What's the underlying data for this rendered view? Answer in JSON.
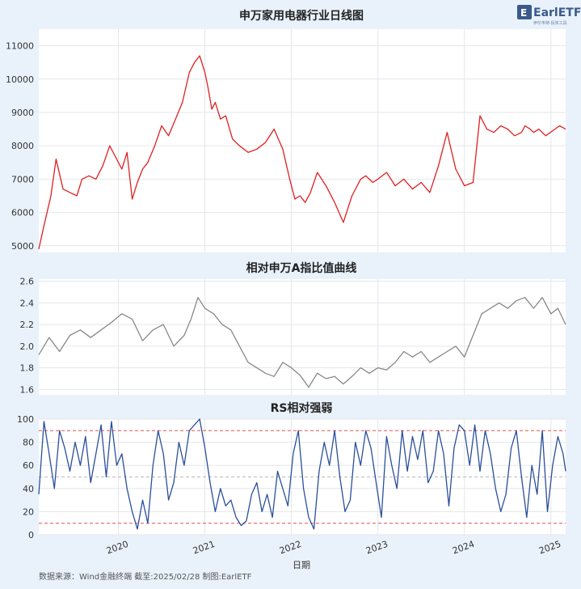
{
  "logo": {
    "text": "EarlETF",
    "subtext": "伊尔韦特·投资工具"
  },
  "footer": {
    "source": "数据来源：Wind金融终端 截至:2025/02/28 制图:EarlETF"
  },
  "colors": {
    "price": "#e02020",
    "ratio": "#888888",
    "rs": "#2a4f9a",
    "threshold": "#e05050",
    "mid": "#bbbbbb",
    "background": "#e9f2fb"
  },
  "chart_data": [
    {
      "type": "line",
      "title": "申万家用电器行业日线图",
      "ylim": [
        4800,
        11500
      ],
      "yticks": [
        5000,
        6000,
        7000,
        8000,
        9000,
        10000,
        11000
      ],
      "series": [
        {
          "x": [
            2019.08,
            2019.14,
            2019.22,
            2019.28,
            2019.36,
            2019.44,
            2019.52,
            2019.58,
            2019.66,
            2019.74,
            2019.82,
            2019.9,
            2019.96,
            2020.04,
            2020.1,
            2020.16,
            2020.22,
            2020.28,
            2020.34,
            2020.42,
            2020.5,
            2020.58,
            2020.66,
            2020.74,
            2020.82,
            2020.88,
            2020.94,
            2021.0,
            2021.04,
            2021.08,
            2021.12,
            2021.18,
            2021.24,
            2021.32,
            2021.4,
            2021.5,
            2021.6,
            2021.7,
            2021.8,
            2021.9,
            2021.98,
            2022.04,
            2022.1,
            2022.16,
            2022.22,
            2022.3,
            2022.4,
            2022.5,
            2022.6,
            2022.7,
            2022.8,
            2022.86,
            2022.94,
            2023.0,
            2023.1,
            2023.2,
            2023.3,
            2023.4,
            2023.5,
            2023.6,
            2023.7,
            2023.8,
            2023.9,
            2024.0,
            2024.1,
            2024.18,
            2024.26,
            2024.34,
            2024.42,
            2024.5,
            2024.58,
            2024.66,
            2024.7,
            2024.76,
            2024.8,
            2024.86,
            2024.94,
            2025.02,
            2025.1,
            2025.17
          ],
          "values": [
            4900,
            5600,
            6500,
            7600,
            6700,
            6600,
            6500,
            7000,
            7100,
            7000,
            7400,
            8000,
            7700,
            7300,
            7800,
            6400,
            6900,
            7300,
            7500,
            8000,
            8600,
            8300,
            8800,
            9300,
            10200,
            10500,
            10700,
            10200,
            9700,
            9100,
            9300,
            8800,
            8900,
            8200,
            8000,
            7800,
            7900,
            8100,
            8500,
            7900,
            7000,
            6400,
            6500,
            6300,
            6600,
            7200,
            6800,
            6300,
            5700,
            6500,
            7000,
            7100,
            6900,
            7000,
            7200,
            6800,
            7000,
            6700,
            6900,
            6600,
            7400,
            8400,
            7300,
            6800,
            6900,
            8900,
            8500,
            8400,
            8600,
            8500,
            8300,
            8400,
            8600,
            8500,
            8400,
            8500,
            8300,
            8450,
            8600,
            8500
          ]
        }
      ]
    },
    {
      "type": "line",
      "title": "相对申万A指比值曲线",
      "ylim": [
        1.55,
        2.62
      ],
      "yticks": [
        1.6,
        1.8,
        2.0,
        2.2,
        2.4,
        2.6
      ],
      "series": [
        {
          "x": [
            2019.08,
            2019.2,
            2019.32,
            2019.44,
            2019.56,
            2019.68,
            2019.8,
            2019.92,
            2020.04,
            2020.16,
            2020.28,
            2020.4,
            2020.52,
            2020.64,
            2020.76,
            2020.84,
            2020.92,
            2021.0,
            2021.1,
            2021.2,
            2021.3,
            2021.4,
            2021.5,
            2021.6,
            2021.7,
            2021.8,
            2021.9,
            2022.0,
            2022.1,
            2022.2,
            2022.3,
            2022.4,
            2022.5,
            2022.6,
            2022.7,
            2022.8,
            2022.9,
            2023.0,
            2023.1,
            2023.2,
            2023.3,
            2023.4,
            2023.5,
            2023.6,
            2023.7,
            2023.8,
            2023.9,
            2024.0,
            2024.1,
            2024.2,
            2024.3,
            2024.4,
            2024.5,
            2024.6,
            2024.7,
            2024.8,
            2024.9,
            2025.0,
            2025.08,
            2025.17
          ],
          "values": [
            1.92,
            2.08,
            1.95,
            2.1,
            2.15,
            2.08,
            2.15,
            2.22,
            2.3,
            2.25,
            2.05,
            2.15,
            2.2,
            2.0,
            2.1,
            2.25,
            2.45,
            2.35,
            2.3,
            2.2,
            2.15,
            2.0,
            1.85,
            1.8,
            1.75,
            1.72,
            1.85,
            1.8,
            1.73,
            1.62,
            1.75,
            1.7,
            1.72,
            1.65,
            1.72,
            1.8,
            1.75,
            1.8,
            1.78,
            1.85,
            1.95,
            1.9,
            1.95,
            1.85,
            1.9,
            1.95,
            2.0,
            1.9,
            2.1,
            2.3,
            2.35,
            2.4,
            2.35,
            2.42,
            2.45,
            2.35,
            2.45,
            2.3,
            2.35,
            2.2
          ]
        }
      ]
    },
    {
      "type": "line",
      "title": "RS相对强弱",
      "xlabel": "日期",
      "ylim": [
        0,
        100
      ],
      "yticks": [
        0,
        20,
        40,
        60,
        80,
        100
      ],
      "thresholds": [
        90,
        10
      ],
      "midline": 50,
      "xticks": [
        "2020",
        "2021",
        "2022",
        "2023",
        "2024",
        "2025"
      ],
      "xtick_values": [
        2020,
        2021,
        2022,
        2023,
        2024,
        2025
      ],
      "series": [
        {
          "x": [
            2019.08,
            2019.14,
            2019.2,
            2019.26,
            2019.32,
            2019.38,
            2019.44,
            2019.5,
            2019.56,
            2019.62,
            2019.68,
            2019.74,
            2019.8,
            2019.86,
            2019.92,
            2019.98,
            2020.04,
            2020.1,
            2020.16,
            2020.22,
            2020.28,
            2020.34,
            2020.4,
            2020.46,
            2020.52,
            2020.58,
            2020.64,
            2020.7,
            2020.76,
            2020.82,
            2020.88,
            2020.94,
            2021.0,
            2021.06,
            2021.12,
            2021.18,
            2021.24,
            2021.3,
            2021.36,
            2021.42,
            2021.48,
            2021.54,
            2021.6,
            2021.66,
            2021.72,
            2021.78,
            2021.84,
            2021.9,
            2021.96,
            2022.02,
            2022.08,
            2022.14,
            2022.2,
            2022.26,
            2022.32,
            2022.38,
            2022.44,
            2022.5,
            2022.56,
            2022.62,
            2022.68,
            2022.74,
            2022.8,
            2022.86,
            2022.92,
            2022.98,
            2023.04,
            2023.1,
            2023.16,
            2023.22,
            2023.28,
            2023.34,
            2023.4,
            2023.46,
            2023.52,
            2023.58,
            2023.64,
            2023.7,
            2023.76,
            2023.82,
            2023.88,
            2023.94,
            2024.0,
            2024.06,
            2024.12,
            2024.18,
            2024.24,
            2024.3,
            2024.36,
            2024.42,
            2024.48,
            2024.54,
            2024.6,
            2024.66,
            2024.72,
            2024.78,
            2024.84,
            2024.9,
            2024.96,
            2025.02,
            2025.08,
            2025.14,
            2025.17
          ],
          "values": [
            35,
            98,
            70,
            40,
            90,
            75,
            55,
            80,
            60,
            85,
            45,
            70,
            95,
            50,
            98,
            60,
            70,
            40,
            20,
            5,
            30,
            10,
            60,
            90,
            70,
            30,
            45,
            80,
            60,
            90,
            95,
            100,
            75,
            45,
            20,
            40,
            25,
            30,
            15,
            8,
            12,
            35,
            45,
            20,
            35,
            15,
            55,
            40,
            25,
            70,
            90,
            40,
            15,
            5,
            55,
            80,
            60,
            90,
            50,
            20,
            30,
            80,
            60,
            90,
            75,
            45,
            15,
            85,
            60,
            40,
            90,
            55,
            85,
            65,
            90,
            45,
            55,
            90,
            70,
            25,
            75,
            95,
            90,
            60,
            95,
            55,
            90,
            70,
            40,
            20,
            35,
            75,
            90,
            50,
            15,
            60,
            35,
            90,
            20,
            60,
            85,
            70,
            55
          ]
        }
      ]
    }
  ]
}
